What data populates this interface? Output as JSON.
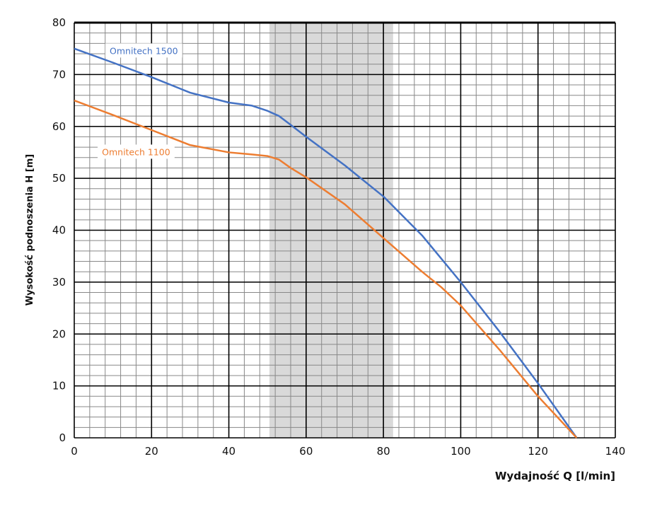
{
  "chart_data": {
    "type": "line",
    "title": "",
    "xlabel": "Wydajność Q [l/min]",
    "ylabel": "Wysokość podnoszenia H [m]",
    "xlim": [
      0,
      140
    ],
    "ylim": [
      0,
      80
    ],
    "xticks": [
      0,
      20,
      40,
      60,
      80,
      100,
      120,
      140
    ],
    "yticks": [
      0,
      10,
      20,
      30,
      40,
      50,
      60,
      70,
      80
    ],
    "x_minor_step": 4,
    "y_minor_step": 2,
    "grid": true,
    "shaded_range": {
      "x": [
        50.5,
        82.5
      ],
      "color": "#d9d9d9"
    },
    "series": [
      {
        "name": "Omnitech 1500",
        "color": "#4472c4",
        "x": [
          0,
          10,
          20,
          30,
          40,
          46,
          50,
          53,
          56,
          60,
          70,
          80,
          90,
          100,
          110,
          120,
          130
        ],
        "y": [
          75,
          72.3,
          69.5,
          66.5,
          64.6,
          64,
          63,
          62,
          60.3,
          58,
          52.5,
          46.5,
          39,
          30,
          20.5,
          10.5,
          0
        ]
      },
      {
        "name": "Omnitech 1100",
        "color": "#ed7d31",
        "x": [
          0,
          10,
          20,
          30,
          40,
          46,
          50,
          53,
          56,
          60,
          70,
          80,
          90,
          95,
          100,
          110,
          120,
          130
        ],
        "y": [
          65,
          62.2,
          59.3,
          56.4,
          55,
          54.6,
          54.3,
          53.6,
          52,
          50.2,
          45,
          38.5,
          32,
          29,
          25.5,
          17,
          8,
          0
        ]
      }
    ],
    "annotations": [
      {
        "text": "Omnitech 1500",
        "series": 0,
        "at": [
          18,
          74.5
        ]
      },
      {
        "text": "Omnitech 1100",
        "series": 1,
        "at": [
          16,
          55
        ]
      }
    ]
  }
}
